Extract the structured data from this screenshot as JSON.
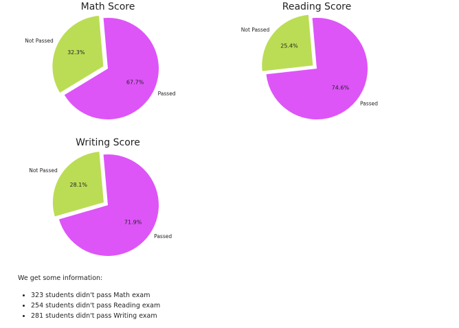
{
  "colors": {
    "passed": "#dd55f7",
    "not_passed": "#bbdd55"
  },
  "chart_data": [
    {
      "type": "pie",
      "title": "Math Score",
      "labels": [
        "Not Passed",
        "Passed"
      ],
      "values": [
        32.3,
        67.7
      ],
      "value_labels": [
        "32.3%",
        "67.7%"
      ]
    },
    {
      "type": "pie",
      "title": "Reading Score",
      "labels": [
        "Not Passed",
        "Passed"
      ],
      "values": [
        25.4,
        74.6
      ],
      "value_labels": [
        "25.4%",
        "74.6%"
      ]
    },
    {
      "type": "pie",
      "title": "Writing Score",
      "labels": [
        "Not Passed",
        "Passed"
      ],
      "values": [
        28.1,
        71.9
      ],
      "value_labels": [
        "28.1%",
        "71.9%"
      ]
    }
  ],
  "info": {
    "intro": "We get some information:",
    "items": [
      "323 students didn't pass Math exam",
      "254 students didn't pass Reading exam",
      "281 students didn't pass Writing exam"
    ]
  }
}
